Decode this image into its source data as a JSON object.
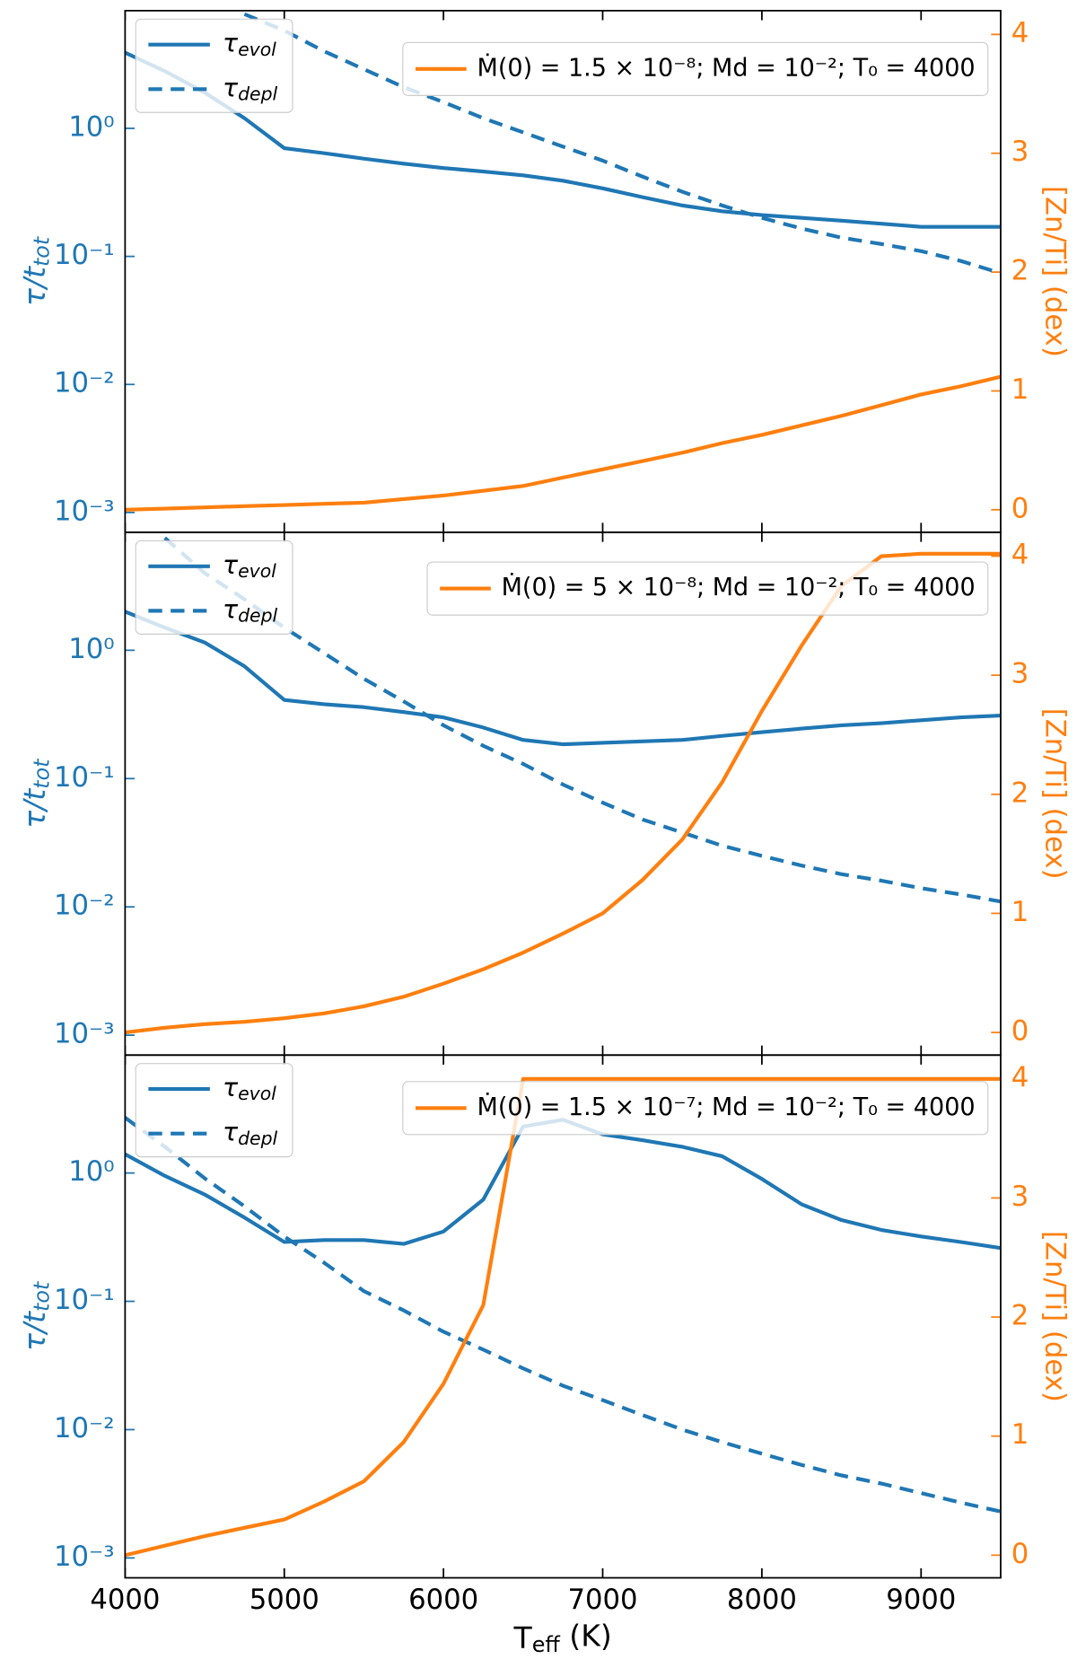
{
  "chart_data": [
    {
      "type": "line",
      "log_y": true,
      "ylabel": "τ/ttot",
      "y2label": "[Zn/Ti] (dex)",
      "x": [
        4000,
        4250,
        4500,
        4750,
        5000,
        5250,
        5500,
        5750,
        6000,
        6250,
        6500,
        6750,
        7000,
        7250,
        7500,
        7750,
        8000,
        8250,
        8500,
        8750,
        9000,
        9250,
        9500
      ],
      "xlim": [
        4000,
        9500
      ],
      "xticks": [
        4000,
        5000,
        6000,
        7000,
        8000,
        9000
      ],
      "ylim": [
        0.0007,
        8.3
      ],
      "yticks": [
        {
          "value": 0.001,
          "label": "10⁻³"
        },
        {
          "value": 0.01,
          "label": "10⁻²"
        },
        {
          "value": 0.1,
          "label": "10⁻¹"
        },
        {
          "value": 1,
          "label": "10⁰"
        }
      ],
      "y2lim": [
        -0.19,
        4.2
      ],
      "y2ticks": [
        0,
        1,
        2,
        3,
        4
      ],
      "series": [
        {
          "name": "τevol",
          "color": "#1f77b4",
          "dash": false,
          "values": [
            3.9,
            2.8,
            1.9,
            1.2,
            0.7,
            0.64,
            0.58,
            0.53,
            0.49,
            0.46,
            0.43,
            0.39,
            0.34,
            0.29,
            0.25,
            0.225,
            0.21,
            0.2,
            0.19,
            0.18,
            0.17,
            0.17,
            0.17
          ]
        },
        {
          "name": "τdepl",
          "color": "#1f77b4",
          "dash": true,
          "values": [
            null,
            null,
            null,
            7.8,
            5.8,
            4.0,
            2.9,
            2.1,
            1.6,
            1.2,
            0.93,
            0.72,
            0.56,
            0.42,
            0.32,
            0.25,
            0.2,
            0.165,
            0.14,
            0.125,
            0.11,
            0.092,
            0.074
          ]
        },
        {
          "name": "Ṁ(0) = 1.5 × 10⁻⁸; Md = 10⁻²; T₀ = 4000",
          "color": "#ff7f0e",
          "dash": false,
          "axis": "y2",
          "values": [
            0,
            0.01,
            0.02,
            0.03,
            0.04,
            0.05,
            0.06,
            0.09,
            0.12,
            0.16,
            0.2,
            0.27,
            0.34,
            0.41,
            0.48,
            0.56,
            0.63,
            0.71,
            0.79,
            0.88,
            0.97,
            1.04,
            1.12
          ]
        }
      ]
    },
    {
      "type": "line",
      "log_y": true,
      "ylabel": "τ/ttot",
      "y2label": "[Zn/Ti] (dex)",
      "x": [
        4000,
        4250,
        4500,
        4750,
        5000,
        5250,
        5500,
        5750,
        6000,
        6250,
        6500,
        6750,
        7000,
        7250,
        7500,
        7750,
        8000,
        8250,
        8500,
        8750,
        9000,
        9250,
        9500
      ],
      "xlim": [
        4000,
        9500
      ],
      "xticks": [
        4000,
        5000,
        6000,
        7000,
        8000,
        9000
      ],
      "ylim": [
        0.0007,
        8.3
      ],
      "yticks": [
        {
          "value": 0.001,
          "label": "10⁻³"
        },
        {
          "value": 0.01,
          "label": "10⁻²"
        },
        {
          "value": 0.1,
          "label": "10⁻¹"
        },
        {
          "value": 1,
          "label": "10⁰"
        }
      ],
      "y2lim": [
        -0.19,
        4.2
      ],
      "y2ticks": [
        0,
        1,
        2,
        3,
        4
      ],
      "series": [
        {
          "name": "τevol",
          "color": "#1f77b4",
          "dash": false,
          "values": [
            2.0,
            1.5,
            1.15,
            0.75,
            0.41,
            0.38,
            0.36,
            0.33,
            0.3,
            0.25,
            0.2,
            0.185,
            0.19,
            0.195,
            0.2,
            0.215,
            0.23,
            0.245,
            0.26,
            0.27,
            0.285,
            0.3,
            0.31
          ]
        },
        {
          "name": "τdepl",
          "color": "#1f77b4",
          "dash": true,
          "values": [
            null,
            7.5,
            4.0,
            2.5,
            1.5,
            0.95,
            0.6,
            0.4,
            0.26,
            0.18,
            0.13,
            0.09,
            0.065,
            0.048,
            0.038,
            0.03,
            0.025,
            0.021,
            0.018,
            0.016,
            0.014,
            0.0125,
            0.011
          ]
        },
        {
          "name": "Ṁ(0) = 5 × 10⁻⁸; Md = 10⁻²; T₀ = 4000",
          "color": "#ff7f0e",
          "dash": false,
          "axis": "y2",
          "values": [
            0,
            0.04,
            0.07,
            0.09,
            0.12,
            0.16,
            0.22,
            0.3,
            0.41,
            0.53,
            0.67,
            0.83,
            1.0,
            1.28,
            1.62,
            2.1,
            2.7,
            3.25,
            3.75,
            4.0,
            4.02,
            4.02,
            4.02
          ]
        }
      ]
    },
    {
      "type": "line",
      "log_y": true,
      "ylabel": "τ/ttot",
      "y2label": "[Zn/Ti] (dex)",
      "xlabel": "Teff (K)",
      "x": [
        4000,
        4250,
        4500,
        4750,
        5000,
        5250,
        5500,
        5750,
        6000,
        6250,
        6500,
        6750,
        7000,
        7250,
        7500,
        7750,
        8000,
        8250,
        8500,
        8750,
        9000,
        9250,
        9500
      ],
      "xlim": [
        4000,
        9500
      ],
      "xticks": [
        4000,
        5000,
        6000,
        7000,
        8000,
        9000
      ],
      "ylim": [
        0.0007,
        8.3
      ],
      "yticks": [
        {
          "value": 0.001,
          "label": "10⁻³"
        },
        {
          "value": 0.01,
          "label": "10⁻²"
        },
        {
          "value": 0.1,
          "label": "10⁻¹"
        },
        {
          "value": 1,
          "label": "10⁰"
        }
      ],
      "y2lim": [
        -0.19,
        4.2
      ],
      "y2ticks": [
        0,
        1,
        2,
        3,
        4
      ],
      "series": [
        {
          "name": "τevol",
          "color": "#1f77b4",
          "dash": false,
          "values": [
            1.4,
            0.95,
            0.68,
            0.45,
            0.29,
            0.3,
            0.3,
            0.28,
            0.35,
            0.62,
            2.3,
            2.6,
            2.0,
            1.8,
            1.6,
            1.35,
            0.9,
            0.57,
            0.43,
            0.36,
            0.32,
            0.29,
            0.26
          ]
        },
        {
          "name": "τdepl",
          "color": "#1f77b4",
          "dash": true,
          "values": [
            2.7,
            1.6,
            0.91,
            0.55,
            0.32,
            0.2,
            0.12,
            0.085,
            0.058,
            0.042,
            0.03,
            0.022,
            0.017,
            0.013,
            0.01,
            0.008,
            0.0065,
            0.0053,
            0.0044,
            0.0038,
            0.0032,
            0.0027,
            0.0023
          ]
        },
        {
          "name": "Ṁ(0) = 1.5 × 10⁻⁷; Md = 10⁻²; T₀ = 4000",
          "color": "#ff7f0e",
          "dash": false,
          "axis": "y2",
          "values": [
            0,
            0.08,
            0.16,
            0.23,
            0.3,
            0.45,
            0.62,
            0.95,
            1.44,
            2.1,
            4.0,
            4.0,
            4.0,
            4.0,
            4.0,
            4.0,
            4.0,
            4.0,
            4.0,
            4.0,
            4.0,
            4.0,
            4.0
          ]
        }
      ]
    }
  ]
}
